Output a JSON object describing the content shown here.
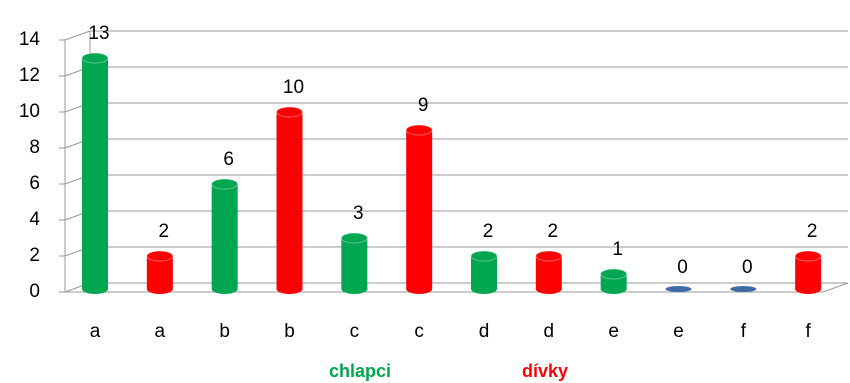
{
  "chart_data": {
    "type": "bar",
    "categories": [
      "a",
      "a",
      "b",
      "b",
      "c",
      "c",
      "d",
      "d",
      "e",
      "e",
      "f",
      "f"
    ],
    "values": [
      13,
      2,
      6,
      10,
      3,
      9,
      2,
      2,
      1,
      0,
      0,
      2
    ],
    "colors": [
      "#00a650",
      "#ff0000",
      "#00a650",
      "#ff0000",
      "#00a650",
      "#ff0000",
      "#00a650",
      "#ff0000",
      "#00a650",
      "#ff0000",
      "#00a650",
      "#ff0000"
    ],
    "zero_color": "#3f6aa6",
    "ylim": [
      0,
      14
    ],
    "yticks": [
      0,
      2,
      4,
      6,
      8,
      10,
      12,
      14
    ],
    "grid": true,
    "legend": [
      {
        "name": "chlapci",
        "color": "#00a650"
      },
      {
        "name": "dívky",
        "color": "#ff0000"
      }
    ]
  }
}
